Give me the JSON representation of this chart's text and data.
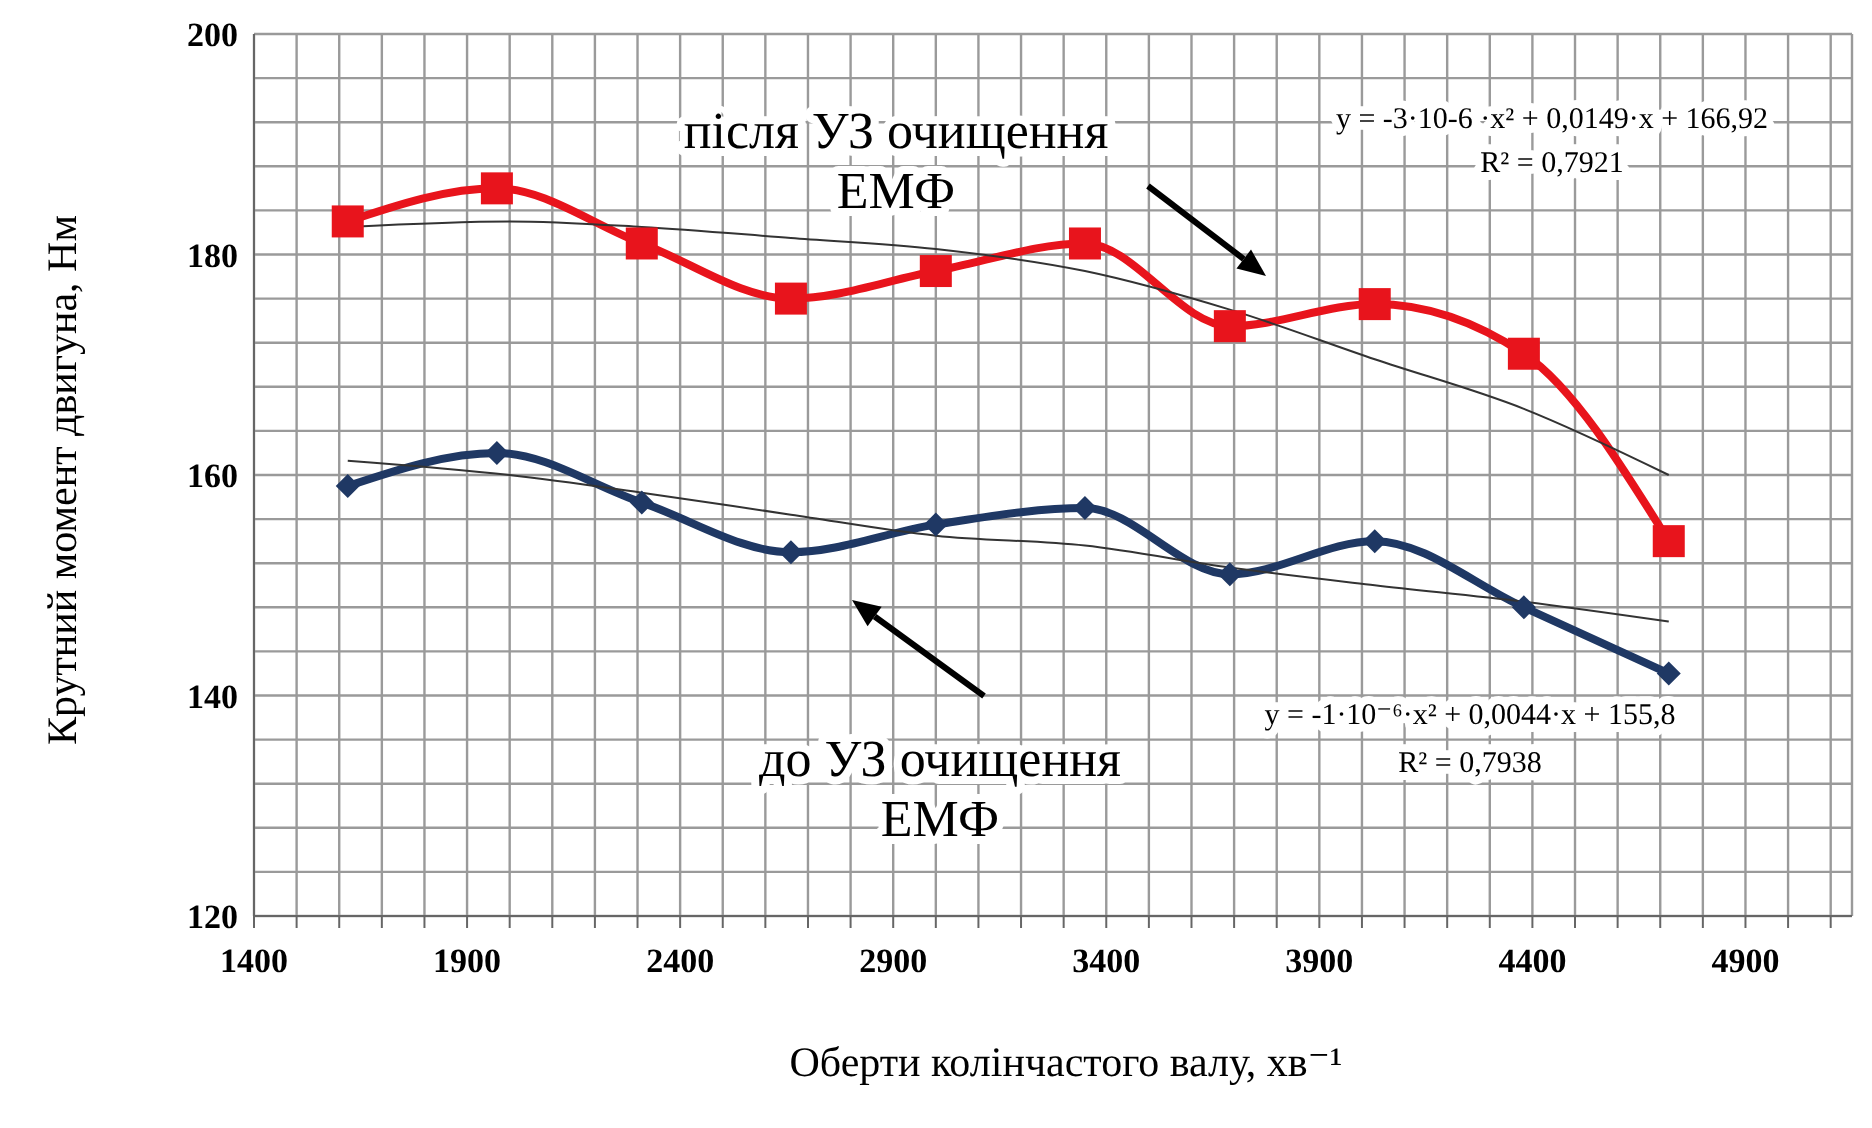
{
  "chart_data": {
    "type": "line",
    "xlabel": "Оберти колінчастого валу, хв⁻¹",
    "ylabel": "Крутний момент двигуна, Нм",
    "xlim": [
      1400,
      5150
    ],
    "xticks": [
      1400,
      {
        "value": 1500,
        "label": null
      },
      {
        "value": 1600,
        "label": null
      },
      {
        "value": 1700,
        "label": null
      },
      {
        "value": 1800,
        "label": null
      },
      1900,
      {
        "value": 2000,
        "label": null
      },
      {
        "value": 2100,
        "label": null
      },
      {
        "value": 2200,
        "label": null
      },
      {
        "value": 2300,
        "label": null
      },
      2400,
      {
        "value": 2500,
        "label": null
      },
      {
        "value": 2600,
        "label": null
      },
      {
        "value": 2700,
        "label": null
      },
      {
        "value": 2800,
        "label": null
      },
      2900,
      {
        "value": 3000,
        "label": null
      },
      {
        "value": 3100,
        "label": null
      },
      {
        "value": 3200,
        "label": null
      },
      {
        "value": 3300,
        "label": null
      },
      3400,
      {
        "value": 3500,
        "label": null
      },
      {
        "value": 3600,
        "label": null
      },
      {
        "value": 3700,
        "label": null
      },
      {
        "value": 3800,
        "label": null
      },
      3900,
      {
        "value": 4000,
        "label": null
      },
      {
        "value": 4100,
        "label": null
      },
      {
        "value": 4200,
        "label": null
      },
      {
        "value": 4300,
        "label": null
      },
      4400,
      {
        "value": 4500,
        "label": null
      },
      {
        "value": 4600,
        "label": null
      },
      {
        "value": 4700,
        "label": null
      },
      {
        "value": 4800,
        "label": null
      },
      4900,
      {
        "value": 5000,
        "label": null
      },
      {
        "value": 5100,
        "label": null
      }
    ],
    "ylim": [
      120,
      200
    ],
    "yticks": [
      120,
      {
        "value": 124,
        "label": null
      },
      {
        "value": 128,
        "label": null
      },
      {
        "value": 132,
        "label": null
      },
      {
        "value": 136,
        "label": null
      },
      140,
      {
        "value": 144,
        "label": null
      },
      {
        "value": 148,
        "label": null
      },
      {
        "value": 152,
        "label": null
      },
      {
        "value": 156,
        "label": null
      },
      160,
      {
        "value": 164,
        "label": null
      },
      {
        "value": 168,
        "label": null
      },
      {
        "value": 172,
        "label": null
      },
      {
        "value": 176,
        "label": null
      },
      180,
      {
        "value": 184,
        "label": null
      },
      {
        "value": 188,
        "label": null
      },
      {
        "value": 192,
        "label": null
      },
      {
        "value": 196,
        "label": null
      },
      200
    ],
    "grid": true,
    "series": [
      {
        "color": "#e8141c",
        "marker": "square",
        "x": [
          1620,
          1970,
          2310,
          2660,
          3000,
          3350,
          3690,
          4030,
          4380,
          4720
        ],
        "values": [
          183,
          186,
          181,
          176,
          178.5,
          181,
          173.5,
          175.5,
          171,
          154
        ]
      },
      {
        "color": "#1f3864",
        "marker": "diamond",
        "x": [
          1620,
          1970,
          2310,
          2660,
          3000,
          3350,
          3690,
          4030,
          4380,
          4720
        ],
        "values": [
          159,
          162,
          157.5,
          153,
          155.5,
          157,
          151,
          154,
          148,
          142
        ]
      },
      {
        "color": "#333333",
        "marker": "none",
        "x": [
          1620,
          2000,
          2310,
          2660,
          3000,
          3350,
          3690,
          4030,
          4380,
          4720
        ],
        "values": [
          182.5,
          183,
          182.5,
          181.5,
          180.5,
          178.5,
          175,
          170.5,
          166,
          160
        ]
      },
      {
        "color": "#333333",
        "marker": "none",
        "x": [
          1620,
          2000,
          2310,
          2660,
          3000,
          3350,
          3690,
          4030,
          4380,
          4720
        ],
        "values": [
          161.3,
          160,
          158.4,
          156.4,
          154.5,
          153.6,
          151.6,
          150,
          148.5,
          146.7
        ]
      }
    ],
    "annotations": [
      "після УЗ очищення\nЕМФ",
      "y = -3·10-6 ·x²  + 0,0149·x + 166,92\nR² = 0,7921",
      "до УЗ очищення\nЕМФ",
      "y = -1·10⁻⁶·x² + 0,0044·x + 155,8\nR² = 0,7938"
    ]
  }
}
